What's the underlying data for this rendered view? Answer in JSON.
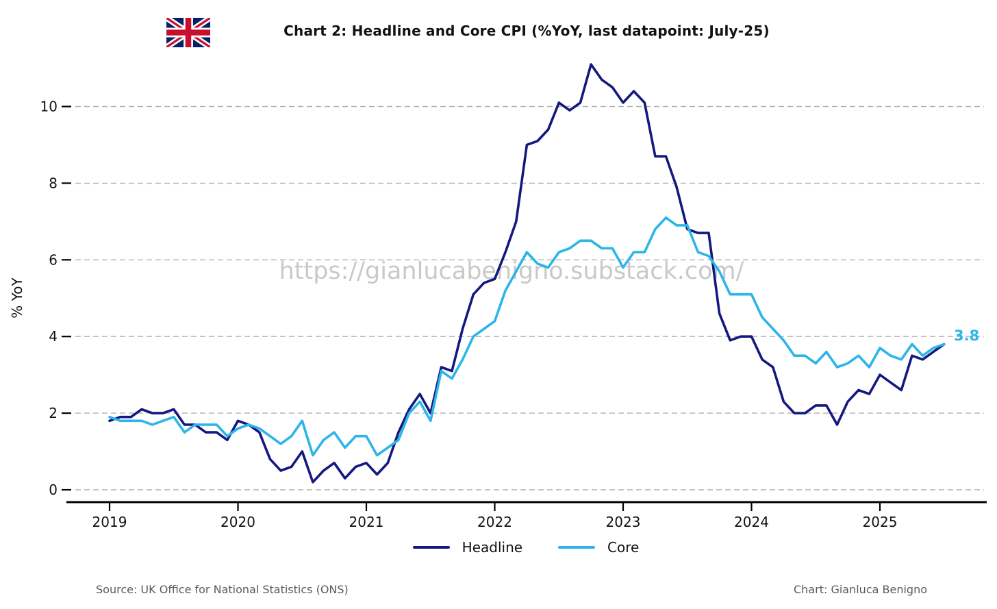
{
  "header": {
    "flag_icon": "uk-flag"
  },
  "chart_data": {
    "type": "line",
    "title": "Chart 2: Headline and Core CPI (%YoY, last datapoint: July-25)",
    "ylabel": "% YoY",
    "x_frequency": "monthly",
    "x_start": "2019-01",
    "x_end": "2025-07",
    "xtick_labels": [
      "2019",
      "2020",
      "2021",
      "2022",
      "2023",
      "2024",
      "2025"
    ],
    "ytick_labels": [
      "0",
      "2",
      "4",
      "6",
      "8",
      "10"
    ],
    "ytick_values": [
      0,
      2,
      4,
      6,
      8,
      10
    ],
    "ylim": [
      -0.4,
      11.3
    ],
    "grid": "horizontal-dashed",
    "legend_position": "bottom-center",
    "watermark": "https://gianlucabenigno.substack.com/",
    "annotation": {
      "text": "3.8",
      "color": "#2bb5e9"
    },
    "series": [
      {
        "name": "Headline",
        "color": "#14187f",
        "values": [
          1.8,
          1.9,
          1.9,
          2.1,
          2.0,
          2.0,
          2.1,
          1.7,
          1.7,
          1.5,
          1.5,
          1.3,
          1.8,
          1.7,
          1.5,
          0.8,
          0.5,
          0.6,
          1.0,
          0.2,
          0.5,
          0.7,
          0.3,
          0.6,
          0.7,
          0.4,
          0.7,
          1.5,
          2.1,
          2.5,
          2.0,
          3.2,
          3.1,
          4.2,
          5.1,
          5.4,
          5.5,
          6.2,
          7.0,
          9.0,
          9.1,
          9.4,
          10.1,
          9.9,
          10.1,
          11.1,
          10.7,
          10.5,
          10.1,
          10.4,
          10.1,
          8.7,
          8.7,
          7.9,
          6.8,
          6.7,
          6.7,
          4.6,
          3.9,
          4.0,
          4.0,
          3.4,
          3.2,
          2.3,
          2.0,
          2.0,
          2.2,
          2.2,
          1.7,
          2.3,
          2.6,
          2.5,
          3.0,
          2.8,
          2.6,
          3.5,
          3.4,
          3.6,
          3.8
        ]
      },
      {
        "name": "Core",
        "color": "#2bb5e9",
        "values": [
          1.9,
          1.8,
          1.8,
          1.8,
          1.7,
          1.8,
          1.9,
          1.5,
          1.7,
          1.7,
          1.7,
          1.4,
          1.6,
          1.7,
          1.6,
          1.4,
          1.2,
          1.4,
          1.8,
          0.9,
          1.3,
          1.5,
          1.1,
          1.4,
          1.4,
          0.9,
          1.1,
          1.3,
          2.0,
          2.3,
          1.8,
          3.1,
          2.9,
          3.4,
          4.0,
          4.2,
          4.4,
          5.2,
          5.7,
          6.2,
          5.9,
          5.8,
          6.2,
          6.3,
          6.5,
          6.5,
          6.3,
          6.3,
          5.8,
          6.2,
          6.2,
          6.8,
          7.1,
          6.9,
          6.9,
          6.2,
          6.1,
          5.7,
          5.1,
          5.1,
          5.1,
          4.5,
          4.2,
          3.9,
          3.5,
          3.5,
          3.3,
          3.6,
          3.2,
          3.3,
          3.5,
          3.2,
          3.7,
          3.5,
          3.4,
          3.8,
          3.5,
          3.7,
          3.8
        ]
      }
    ]
  },
  "footer": {
    "source": "Source: UK Office for National Statistics (ONS)",
    "credit": "Chart: Gianluca Benigno"
  }
}
